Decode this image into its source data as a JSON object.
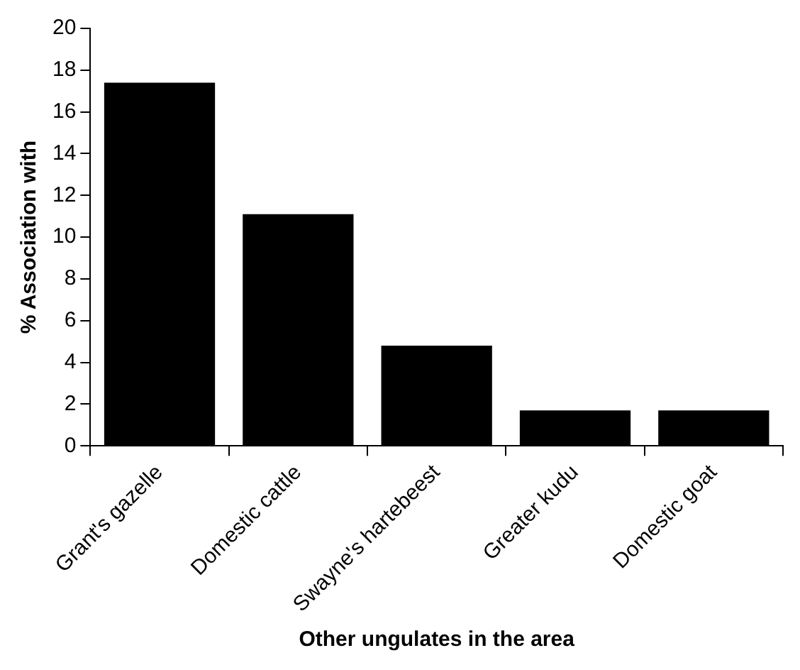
{
  "chart_data": {
    "type": "bar",
    "xlabel": "Other ungulates in the area",
    "ylabel": "% Association with",
    "categories": [
      "Grant's gazelle",
      "Domestic cattle",
      "Swayne's hartebeest",
      "Greater kudu",
      "Domestic goat"
    ],
    "values": [
      17.4,
      11.1,
      4.8,
      1.7,
      1.7
    ],
    "color": "#000000",
    "ylim": [
      0,
      20
    ],
    "yticks": [
      0,
      2,
      4,
      6,
      8,
      10,
      12,
      14,
      16,
      18,
      20
    ],
    "grid": false,
    "legend": false
  }
}
